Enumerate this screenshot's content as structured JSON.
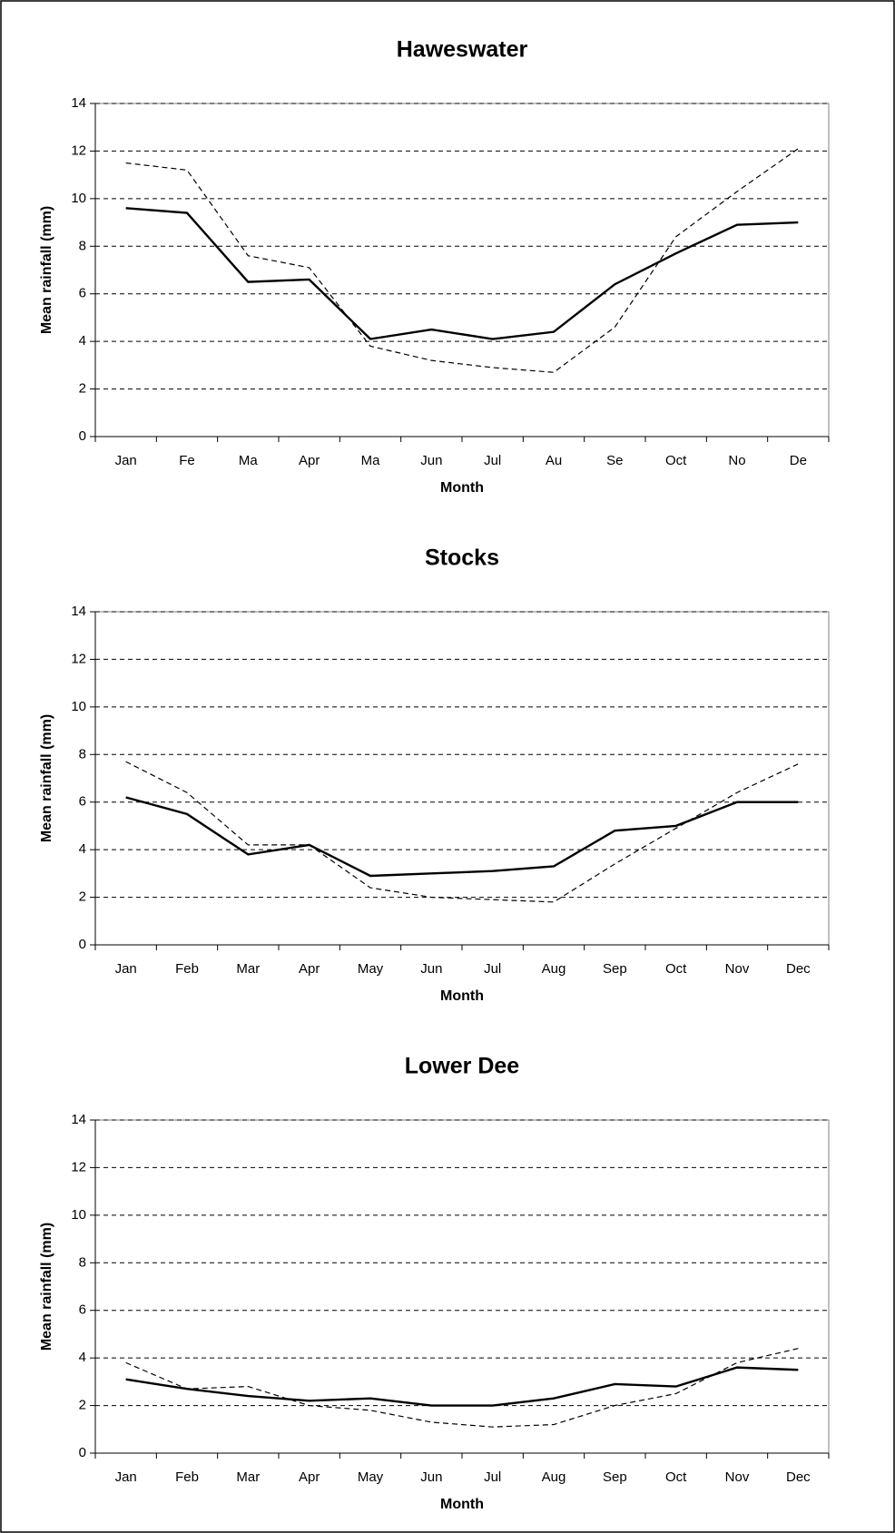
{
  "chart_data": [
    {
      "type": "line",
      "title": "Haweswater",
      "x_label": "Month",
      "y_label": "Mean rainfall (mm)",
      "categories": [
        "Jan",
        "Fe",
        "Ma",
        "Apr",
        "Ma",
        "Jun",
        "Jul",
        "Au",
        "Se",
        "Oct",
        "No",
        "De"
      ],
      "series": [
        {
          "color": "#000000",
          "dash": false,
          "values": [
            9.6,
            9.4,
            6.5,
            6.6,
            4.1,
            4.5,
            4.1,
            4.4,
            6.4,
            7.7,
            8.9,
            9.0
          ]
        },
        {
          "color": "#000000",
          "dash": true,
          "values": [
            11.5,
            11.2,
            7.6,
            7.1,
            3.8,
            3.2,
            2.9,
            2.7,
            4.6,
            8.4,
            10.3,
            12.1
          ]
        }
      ],
      "ylim": [
        0,
        14
      ],
      "yticks": [
        0,
        2,
        4,
        6,
        8,
        10,
        12,
        14
      ],
      "grid": true
    },
    {
      "type": "line",
      "title": "Stocks",
      "x_label": "Month",
      "y_label": "Mean rainfall (mm)",
      "categories": [
        "Jan",
        "Feb",
        "Mar",
        "Apr",
        "May",
        "Jun",
        "Jul",
        "Aug",
        "Sep",
        "Oct",
        "Nov",
        "Dec"
      ],
      "series": [
        {
          "color": "#000000",
          "dash": false,
          "values": [
            6.2,
            5.5,
            3.8,
            4.2,
            2.9,
            3.0,
            3.1,
            3.3,
            4.8,
            5.0,
            6.0,
            6.0
          ]
        },
        {
          "color": "#000000",
          "dash": true,
          "values": [
            7.7,
            6.4,
            4.2,
            4.2,
            2.4,
            2.0,
            1.9,
            1.8,
            3.4,
            4.9,
            6.4,
            7.6
          ]
        }
      ],
      "ylim": [
        0,
        14
      ],
      "yticks": [
        0,
        2,
        4,
        6,
        8,
        10,
        12,
        14
      ],
      "grid": true
    },
    {
      "type": "line",
      "title": "Lower Dee",
      "x_label": "Month",
      "y_label": "Mean rainfall (mm)",
      "categories": [
        "Jan",
        "Feb",
        "Mar",
        "Apr",
        "May",
        "Jun",
        "Jul",
        "Aug",
        "Sep",
        "Oct",
        "Nov",
        "Dec"
      ],
      "series": [
        {
          "color": "#000000",
          "dash": false,
          "values": [
            3.1,
            2.7,
            2.4,
            2.2,
            2.3,
            2.0,
            2.0,
            2.3,
            2.9,
            2.8,
            3.6,
            3.5
          ]
        },
        {
          "color": "#000000",
          "dash": true,
          "values": [
            3.8,
            2.7,
            2.8,
            2.0,
            1.8,
            1.3,
            1.1,
            1.2,
            2.0,
            2.5,
            3.8,
            4.4
          ]
        }
      ],
      "ylim": [
        0,
        14
      ],
      "yticks": [
        0,
        2,
        4,
        6,
        8,
        10,
        12,
        14
      ],
      "grid": true
    }
  ]
}
